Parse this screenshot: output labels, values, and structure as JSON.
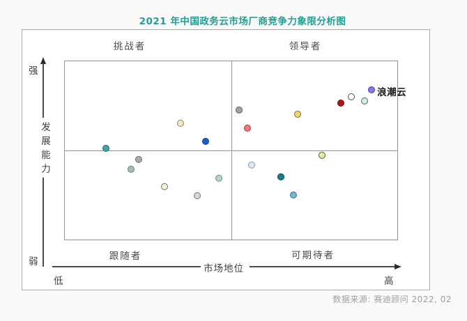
{
  "title": "2021 年中国政务云市场厂商竞争力象限分析图",
  "quadrants": {
    "top_left": "挑战者",
    "top_right": "领导者",
    "bottom_left": "跟随者",
    "bottom_right": "可期待者"
  },
  "axes": {
    "y_label": "发展能力",
    "y_top": "强",
    "y_bottom": "弱",
    "x_label": "市场地位",
    "x_left": "低",
    "x_right": "高"
  },
  "source": "数据来源: 赛迪顾问  2022, 02",
  "colors": {
    "title": "#1ea096",
    "axis_line": "#4a4a4a",
    "grid_line": "#8f9398",
    "source_text": "#9e9e9e"
  },
  "chart_data": {
    "type": "scatter",
    "title": "2021 年中国政务云市场厂商竞争力象限分析图",
    "xlabel": "市场地位",
    "ylabel": "发展能力",
    "x_range_labels": [
      "低",
      "高"
    ],
    "y_range_labels": [
      "弱",
      "强"
    ],
    "quadrant_labels": [
      "挑战者",
      "领导者",
      "跟随者",
      "可期待者"
    ],
    "axis_note": "no numeric ticks shown; x/y are relative positions 0-100 estimated from the plot",
    "points": [
      {
        "x": 12.5,
        "y": 51.2,
        "fill": "#44a0a9",
        "stroke": "#2a646c",
        "label": ""
      },
      {
        "x": 34.9,
        "y": 65.1,
        "fill": "#f5ebc6",
        "stroke": "#8f8159",
        "label": ""
      },
      {
        "x": 42.4,
        "y": 55.0,
        "fill": "#1e5ec8",
        "stroke": "#123b8c",
        "label": ""
      },
      {
        "x": 52.4,
        "y": 72.5,
        "fill": "#9fa3a8",
        "stroke": "#585c61",
        "label": ""
      },
      {
        "x": 54.9,
        "y": 62.4,
        "fill": "#e97c7e",
        "stroke": "#a93338",
        "label": ""
      },
      {
        "x": 69.9,
        "y": 70.2,
        "fill": "#f0d470",
        "stroke": "#7d6b2e",
        "label": ""
      },
      {
        "x": 82.9,
        "y": 76.4,
        "fill": "#af1417",
        "stroke": "#700b0e",
        "label": ""
      },
      {
        "x": 86.0,
        "y": 79.8,
        "fill": "#ffffff",
        "stroke": "#4a4a4a",
        "label": ""
      },
      {
        "x": 90.0,
        "y": 77.5,
        "fill": "#cfedea",
        "stroke": "#4e6663",
        "label": ""
      },
      {
        "x": 92.1,
        "y": 83.7,
        "fill": "#8379e6",
        "stroke": "#4a42b0",
        "label": "浪潮云"
      },
      {
        "x": 22.3,
        "y": 45.0,
        "fill": "#aaadb0",
        "stroke": "#66696c",
        "label": ""
      },
      {
        "x": 20.0,
        "y": 39.5,
        "fill": "#a3bfbc",
        "stroke": "#5e7c79",
        "label": ""
      },
      {
        "x": 30.1,
        "y": 29.8,
        "fill": "#f0f1da",
        "stroke": "#70705c",
        "label": ""
      },
      {
        "x": 39.9,
        "y": 24.8,
        "fill": "#d4d6d8",
        "stroke": "#737578",
        "label": ""
      },
      {
        "x": 46.3,
        "y": 34.5,
        "fill": "#b8d3cf",
        "stroke": "#6e8b87",
        "label": ""
      },
      {
        "x": 77.2,
        "y": 47.3,
        "fill": "#e6e8a6",
        "stroke": "#5c5c32",
        "label": ""
      },
      {
        "x": 56.2,
        "y": 41.9,
        "fill": "#deeaf2",
        "stroke": "#7e97a7",
        "label": ""
      },
      {
        "x": 64.9,
        "y": 35.3,
        "fill": "#12828b",
        "stroke": "#093f44",
        "label": ""
      },
      {
        "x": 68.7,
        "y": 25.2,
        "fill": "#76b5d7",
        "stroke": "#39718d",
        "label": ""
      }
    ]
  }
}
